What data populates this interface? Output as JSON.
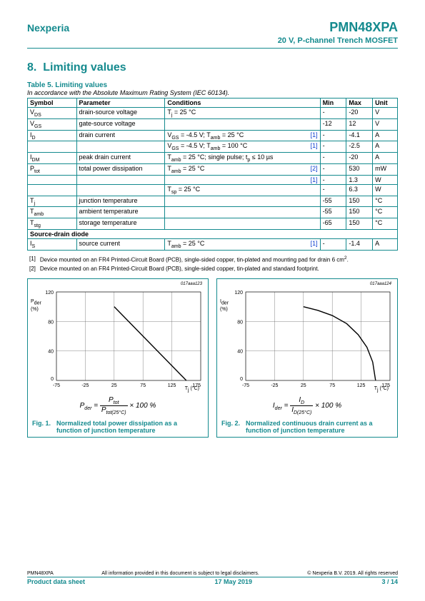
{
  "header": {
    "brand": "Nexperia",
    "part": "PMN48XPA",
    "subtitle": "20 V, P-channel Trench MOSFET"
  },
  "section": {
    "number": "8.",
    "title": "Limiting values"
  },
  "table": {
    "title": "Table 5. Limiting values",
    "subtitle": "In accordance with the Absolute Maximum Rating System (IEC 60134).",
    "headers": [
      "Symbol",
      "Parameter",
      "Conditions",
      "",
      "Min",
      "Max",
      "Unit"
    ],
    "rows": [
      {
        "sym_html": "V<sub>DS</sub>",
        "par": "drain-source voltage",
        "con_html": "T<sub>j</sub> = 25 °C",
        "ref": "",
        "min": "-",
        "max": "-20",
        "unit": "V"
      },
      {
        "sym_html": "V<sub>GS</sub>",
        "par": "gate-source voltage",
        "con_html": "",
        "ref": "",
        "min": "-12",
        "max": "12",
        "unit": "V"
      },
      {
        "sym_html": "I<sub>D</sub>",
        "par": "drain current",
        "con_html": "V<sub>GS</sub> = -4.5 V; T<sub>amb</sub> = 25 °C",
        "ref": "[1]",
        "min": "-",
        "max": "-4.1",
        "unit": "A"
      },
      {
        "sym_html": "",
        "par": "",
        "con_html": "V<sub>GS</sub> = -4.5 V; T<sub>amb</sub> = 100 °C",
        "ref": "[1]",
        "min": "-",
        "max": "-2.5",
        "unit": "A"
      },
      {
        "sym_html": "I<sub>DM</sub>",
        "par": "peak drain current",
        "con_html": "T<sub>amb</sub> = 25 °C; single pulse; t<sub>p</sub> ≤  10 µs",
        "ref": "",
        "min": "-",
        "max": "-20",
        "unit": "A"
      },
      {
        "sym_html": "P<sub>tot</sub>",
        "par": "total power dissipation",
        "con_html": "T<sub>amb</sub> = 25 °C",
        "ref": "[2]",
        "min": "-",
        "max": "530",
        "unit": "mW"
      },
      {
        "sym_html": "",
        "par": "",
        "con_html": "",
        "ref": "[1]",
        "min": "-",
        "max": "1.3",
        "unit": "W"
      },
      {
        "sym_html": "",
        "par": "",
        "con_html": "T<sub>sp</sub> = 25 °C",
        "ref": "",
        "min": "-",
        "max": "6.3",
        "unit": "W"
      },
      {
        "sym_html": "T<sub>j</sub>",
        "par": "junction temperature",
        "con_html": "",
        "ref": "",
        "min": "-55",
        "max": "150",
        "unit": "°C"
      },
      {
        "sym_html": "T<sub>amb</sub>",
        "par": "ambient temperature",
        "con_html": "",
        "ref": "",
        "min": "-55",
        "max": "150",
        "unit": "°C"
      },
      {
        "sym_html": "T<sub>stg</sub>",
        "par": "storage temperature",
        "con_html": "",
        "ref": "",
        "min": "-65",
        "max": "150",
        "unit": "°C"
      }
    ],
    "section_row": "Source-drain diode",
    "rows2": [
      {
        "sym_html": "I<sub>S</sub>",
        "par": "source current",
        "con_html": "T<sub>amb</sub> = 25 °C",
        "ref": "[1]",
        "min": "-",
        "max": "-1.4",
        "unit": "A"
      }
    ]
  },
  "notes": [
    {
      "n": "[1]",
      "text_html": "Device mounted on an FR4 Printed-Circuit Board (PCB), single-sided copper, tin-plated and mounting pad for drain 6 cm<sup>2</sup>."
    },
    {
      "n": "[2]",
      "text_html": "Device mounted on an FR4 Printed-Circuit Board (PCB), single-sided copper, tin-plated and standard footprint."
    }
  ],
  "charts": {
    "common": {
      "x_ticks": [
        -75,
        -25,
        25,
        75,
        125,
        175
      ],
      "y_ticks": [
        0,
        40,
        80,
        120
      ],
      "grid_color": "#666666",
      "line_color": "#000000",
      "background": "#ffffff",
      "x_label_html": "T<sub>j</sub> (°C)"
    },
    "left": {
      "id": "017aaa123",
      "y_label_html": "P<sub>der</sub><br/>(%)",
      "equation_html": "<i>P<sub>der</sub></i> = <span style='display:inline-block;vertical-align:middle;text-align:center'><span style='display:block;border-bottom:1px solid #000;padding:0 2px'><i>P<sub>tot</sub></i></span><span style='display:block;padding:0 2px'><i>P<sub>tot(25°C)</sub></i></span></span> × 100  %",
      "fig_num": "Fig. 1.",
      "fig_text": "Normalized total power dissipation as a function of junction temperature",
      "curve": [
        {
          "x": 25,
          "y": 100
        },
        {
          "x": 150,
          "y": 0
        }
      ]
    },
    "right": {
      "id": "017aaa124",
      "y_label_html": "I<sub>der</sub><br/>(%)",
      "equation_html": "<i>I<sub>der</sub></i> = <span style='display:inline-block;vertical-align:middle;text-align:center'><span style='display:block;border-bottom:1px solid #000;padding:0 2px'><i>I<sub>D</sub></i></span><span style='display:block;padding:0 2px'><i>I<sub>D(25°C)</sub></i></span></span> × 100  %",
      "fig_num": "Fig. 2.",
      "fig_text": "Normalized continuous drain current as a function of junction temperature",
      "curve": [
        {
          "x": 25,
          "y": 100
        },
        {
          "x": 50,
          "y": 95
        },
        {
          "x": 75,
          "y": 88
        },
        {
          "x": 100,
          "y": 77
        },
        {
          "x": 120,
          "y": 62
        },
        {
          "x": 135,
          "y": 45
        },
        {
          "x": 145,
          "y": 25
        },
        {
          "x": 150,
          "y": 0
        }
      ]
    }
  },
  "footer": {
    "part": "PMN48XPA",
    "disclaimer": "All information provided in this document is subject to legal disclaimers.",
    "copy": "© Nexperia B.V. 2019. All rights reserved",
    "doctype": "Product data sheet",
    "date": "17 May 2019",
    "page": "3 / 14"
  }
}
